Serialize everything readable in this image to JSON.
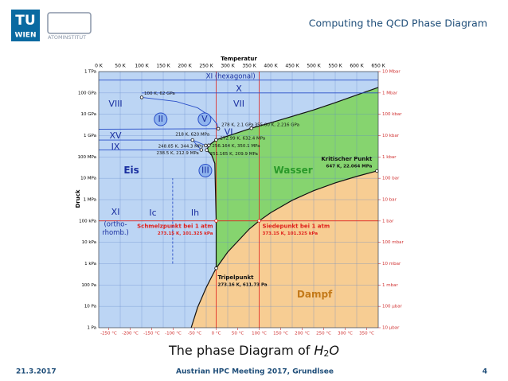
{
  "header": {
    "logo_top": "TU",
    "logo_bottom": "WIEN",
    "institute": "ATOMINSTITUT",
    "title": "Computing the QCD Phase Diagram"
  },
  "caption": {
    "text": "The phase Diagram of",
    "formula": "H",
    "subscript": "2",
    "formula_end": "O"
  },
  "footer": {
    "date": "21.3.2017",
    "event": "Austrian HPC Meeting 2017, Grundlsee",
    "page": "4"
  },
  "chart_data": {
    "type": "line",
    "xlabel": "Temperatur",
    "ylabel": "Druck",
    "log_y": true,
    "grid": true,
    "xlim": [
      0,
      650
    ],
    "xticks": [
      {
        "value": 0,
        "label": "0 K"
      },
      {
        "value": 50,
        "label": "50 K"
      },
      {
        "value": 100,
        "label": "100 K"
      },
      {
        "value": 150,
        "label": "150 K"
      },
      {
        "value": 200,
        "label": "200 K"
      },
      {
        "value": 250,
        "label": "250 K"
      },
      {
        "value": 300,
        "label": "300 K"
      },
      {
        "value": 350,
        "label": "350 K"
      },
      {
        "value": 400,
        "label": "400 K"
      },
      {
        "value": 450,
        "label": "450 K"
      },
      {
        "value": 500,
        "label": "500 K"
      },
      {
        "value": 550,
        "label": "550 K"
      },
      {
        "value": 600,
        "label": "600 K"
      },
      {
        "value": 650,
        "label": "650 K"
      }
    ],
    "x2ticks": [
      {
        "value": 23.15,
        "label": "-250 °C"
      },
      {
        "value": 73.15,
        "label": "-200 °C"
      },
      {
        "value": 123.15,
        "label": "-150 °C"
      },
      {
        "value": 173.15,
        "label": "-100 °C"
      },
      {
        "value": 223.15,
        "label": "-50 °C"
      },
      {
        "value": 273.15,
        "label": "0 °C"
      },
      {
        "value": 323.15,
        "label": "50 °C"
      },
      {
        "value": 373.15,
        "label": "100 °C"
      },
      {
        "value": 423.15,
        "label": "150 °C"
      },
      {
        "value": 473.15,
        "label": "200 °C"
      },
      {
        "value": 523.15,
        "label": "250 °C"
      },
      {
        "value": 573.15,
        "label": "300 °C"
      },
      {
        "value": 623.15,
        "label": "350 °C"
      }
    ],
    "ylim": [
      1,
      1000000000000
    ],
    "yticks": [
      {
        "value": 1,
        "label": "1 Pa"
      },
      {
        "value": 10,
        "label": "10 Pa"
      },
      {
        "value": 100,
        "label": "100 Pa"
      },
      {
        "value": 1000,
        "label": "1 kPa"
      },
      {
        "value": 10000,
        "label": "10 kPa"
      },
      {
        "value": 100000,
        "label": "100 kPa"
      },
      {
        "value": 1000000,
        "label": "1 MPa"
      },
      {
        "value": 10000000,
        "label": "10 MPa"
      },
      {
        "value": 100000000,
        "label": "100 MPa"
      },
      {
        "value": 1000000000,
        "label": "1 GPa"
      },
      {
        "value": 10000000000,
        "label": "10 GPa"
      },
      {
        "value": 100000000000,
        "label": "100 GPa"
      },
      {
        "value": 1000000000000,
        "label": "1 TPa"
      }
    ],
    "y2ticks": [
      {
        "value": 1,
        "label": "10 µbar"
      },
      {
        "value": 10,
        "label": "100 µbar"
      },
      {
        "value": 100,
        "label": "1 mbar"
      },
      {
        "value": 1000,
        "label": "10 mbar"
      },
      {
        "value": 10000,
        "label": "100 mbar"
      },
      {
        "value": 100000,
        "label": "1 bar"
      },
      {
        "value": 1000000,
        "label": "10 bar"
      },
      {
        "value": 10000000,
        "label": "100 bar"
      },
      {
        "value": 100000000,
        "label": "1 kbar"
      },
      {
        "value": 1000000000,
        "label": "10 kbar"
      },
      {
        "value": 10000000000,
        "label": "100 kbar"
      },
      {
        "value": 100000000000,
        "label": "1 Mbar"
      },
      {
        "value": 1000000000000,
        "label": "10 Mbar"
      }
    ],
    "series": [
      {
        "color": "#111111",
        "x": [
          215,
          230,
          250,
          265,
          273.16
        ],
        "values": [
          1,
          9,
          76,
          300,
          611.73
        ]
      },
      {
        "color": "#111111",
        "x": [
          273.16,
          300,
          350,
          373.15,
          400,
          450,
          500,
          550,
          600,
          647
        ],
        "values": [
          611.73,
          3500,
          41700,
          101325,
          245000,
          932000,
          2640000,
          6100000,
          12300000,
          22064000
        ]
      },
      {
        "color": "#111111",
        "x": [
          273.16,
          273.15,
          270,
          262,
          251.165
        ],
        "values": [
          611.73,
          101325,
          50000000,
          130000000,
          209900000
        ]
      },
      {
        "color": "#111111",
        "x": [
          251.165,
          256.164,
          272.99,
          355
        ],
        "values": [
          209900000,
          350100000,
          632400000,
          2216000000
        ]
      },
      {
        "color": "#111111",
        "x": [
          355,
          400,
          450,
          500,
          550,
          600,
          650
        ],
        "values": [
          2216000000,
          4000000000,
          8000000000,
          16000000000,
          35000000000,
          80000000000,
          180000000000
        ]
      },
      {
        "color": "#2a4fc8",
        "x": [
          100,
          180,
          230,
          260,
          275,
          278
        ],
        "values": [
          62000000000,
          40000000000,
          20000000000,
          8000000000,
          3500000000,
          2100000000
        ]
      },
      {
        "color": "#2a4fc8",
        "x": [
          0,
          650
        ],
        "values": [
          400000000000,
          400000000000
        ]
      },
      {
        "color": "#2a4fc8",
        "x": [
          100,
          650
        ],
        "values": [
          100000000000,
          100000000000
        ]
      },
      {
        "color": "#2a4fc8",
        "x": [
          0,
          278
        ],
        "values": [
          2000000000,
          2100000000
        ]
      },
      {
        "color": "#2a4fc8",
        "x": [
          0,
          218
        ],
        "values": [
          620000000,
          620000000
        ]
      },
      {
        "color": "#2a4fc8",
        "x": [
          218,
          248.85
        ],
        "values": [
          620000000,
          344300000
        ]
      },
      {
        "color": "#2a4fc8",
        "x": [
          218,
          238.5
        ],
        "values": [
          620000000,
          212900000
        ]
      },
      {
        "color": "#2a4fc8",
        "x": [
          0,
          238.5
        ],
        "values": [
          212900000,
          212900000
        ]
      },
      {
        "color": "#2a4fc8",
        "dashed": true,
        "x": [
          172,
          172
        ],
        "values": [
          1000,
          10000000
        ]
      }
    ],
    "reference_lines": [
      {
        "axis": "y",
        "value": 101325,
        "color": "#e0201b"
      },
      {
        "axis": "x",
        "value": 273.15,
        "color": "#e0201b"
      },
      {
        "axis": "x",
        "value": 373.15,
        "color": "#e0201b"
      }
    ],
    "points": [
      {
        "x": 273.16,
        "y": 611.73,
        "label": "Tripelpunkt",
        "detail": "273.16 K, 611.73 Pa",
        "color": "#111111"
      },
      {
        "x": 647,
        "y": 22064000,
        "label": "Kritischer Punkt",
        "detail": "647 K, 22.064 MPa",
        "color": "#111111"
      },
      {
        "x": 273.15,
        "y": 101325,
        "label": "Schmelzpunkt bei 1 atm",
        "detail": "273.15 K, 101.325 kPa",
        "color": "#e0201b"
      },
      {
        "x": 373.15,
        "y": 101325,
        "label": "Siedepunkt bei 1 atm",
        "detail": "373.15 K, 101.325 kPa",
        "color": "#e0201b"
      },
      {
        "x": 100,
        "y": 62000000000,
        "label": "100 K, 62 GPa",
        "color": "#111111"
      },
      {
        "x": 278,
        "y": 2100000000,
        "label": "278 K, 2.1 GPa",
        "color": "#111111"
      },
      {
        "x": 355,
        "y": 2216000000,
        "label": "355.00 K, 2.216 GPa",
        "color": "#111111"
      },
      {
        "x": 218,
        "y": 620000000,
        "label": "218 K, 620 MPa",
        "color": "#111111"
      },
      {
        "x": 272.99,
        "y": 632400000,
        "label": "272.99 K, 632.4 MPa",
        "color": "#111111"
      },
      {
        "x": 248.85,
        "y": 344300000,
        "label": "248.85 K, 344.3 MPa",
        "color": "#111111"
      },
      {
        "x": 256.164,
        "y": 350100000,
        "label": "256.164 K, 350.1 MPa",
        "color": "#111111"
      },
      {
        "x": 238.5,
        "y": 212900000,
        "label": "238.5 K, 212.9 MPa",
        "color": "#111111"
      },
      {
        "x": 251.165,
        "y": 209900000,
        "label": "251.165 K, 209.9 MPa",
        "color": "#111111"
      }
    ],
    "regions": [
      {
        "label": "XI (hexagonal)",
        "x": 307,
        "y": 600000000000,
        "color": "#1a2fa0"
      },
      {
        "label": "X",
        "x": 326,
        "y": 150000000000,
        "color": "#1a2fa0"
      },
      {
        "label": "VIII",
        "x": 39,
        "y": 30000000000,
        "color": "#1a2fa0"
      },
      {
        "label": "VII",
        "x": 326,
        "y": 30000000000,
        "color": "#1a2fa0"
      },
      {
        "label": "II",
        "x": 144,
        "y": 5800000000,
        "color": "#1a2fa0",
        "circle": true
      },
      {
        "label": "V",
        "x": 246,
        "y": 5800000000,
        "color": "#1a2fa0",
        "circle": true
      },
      {
        "label": "VI",
        "x": 302,
        "y": 1400000000,
        "color": "#1a2fa0"
      },
      {
        "label": "XV",
        "x": 39,
        "y": 960000000,
        "color": "#1a2fa0"
      },
      {
        "label": "IX",
        "x": 39,
        "y": 290000000,
        "color": "#1a2fa0"
      },
      {
        "label": "III",
        "x": 248,
        "y": 23000000,
        "color": "#1a2fa0",
        "circle": true
      },
      {
        "label": "Eis",
        "x": 76,
        "y": 23000000,
        "color": "#1a2fa0",
        "bold": true
      },
      {
        "label": "Wasser",
        "x": 452,
        "y": 23000000,
        "color": "#2a9a2a",
        "bold": true
      },
      {
        "label": "Dampf",
        "x": 502,
        "y": 35,
        "color": "#c47a1a",
        "bold": true
      },
      {
        "label": "XI",
        "x": 39,
        "y": 250000,
        "color": "#1a2fa0"
      },
      {
        "label": "(ortho-",
        "x": 39,
        "y": 70000,
        "color": "#1a2fa0"
      },
      {
        "label": "rhomb.)",
        "x": 39,
        "y": 28000,
        "color": "#1a2fa0"
      },
      {
        "label": "Ic",
        "x": 126,
        "y": 230000,
        "color": "#1a2fa0"
      },
      {
        "label": "Ih",
        "x": 224,
        "y": 230000,
        "color": "#1a2fa0"
      }
    ]
  }
}
